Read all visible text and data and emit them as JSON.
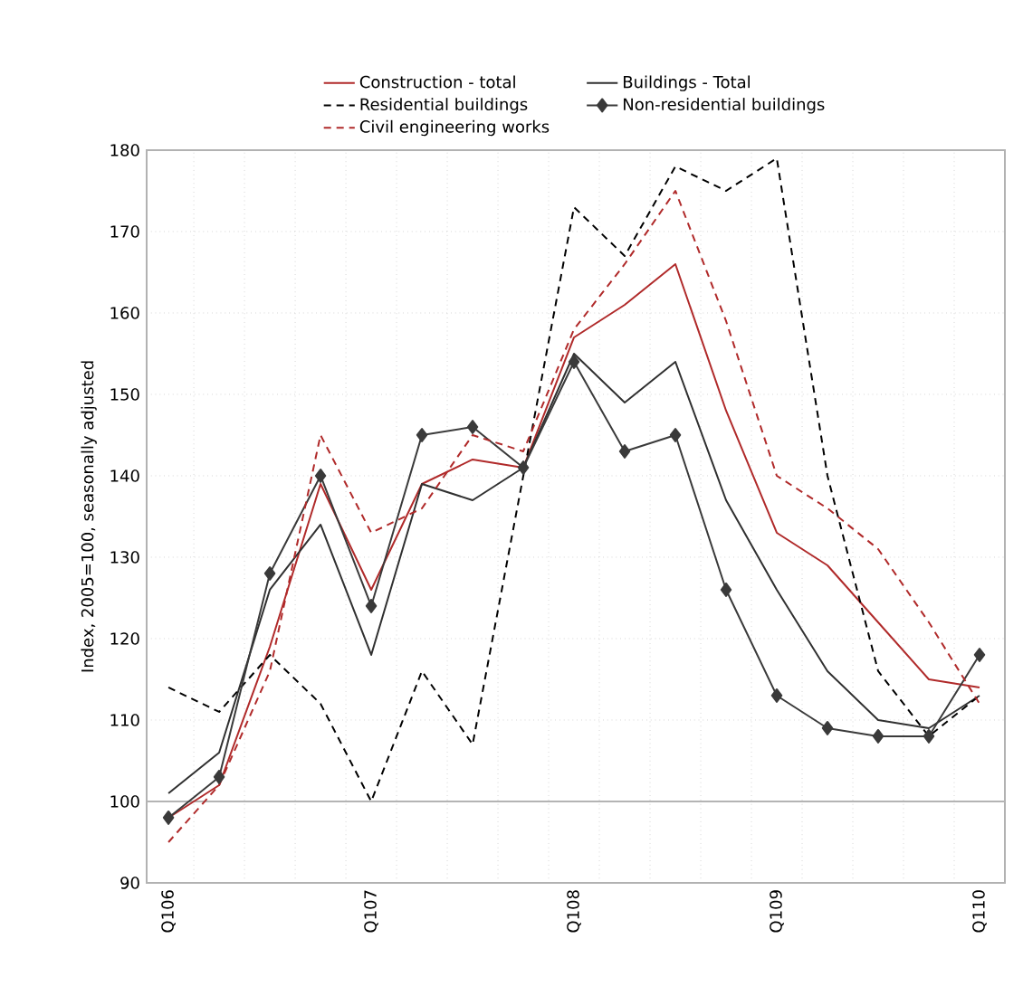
{
  "chart_data": {
    "type": "line",
    "ylabel": "Index, 2005=100, seasonally adjusted",
    "categories": [
      "Q106",
      null,
      null,
      null,
      "Q107",
      null,
      null,
      null,
      "Q108",
      null,
      null,
      null,
      "Q109",
      null,
      null,
      null,
      "Q110"
    ],
    "ylim": [
      90,
      180
    ],
    "yticks": [
      90,
      100,
      110,
      120,
      130,
      140,
      150,
      160,
      170,
      180
    ],
    "grid": true,
    "legend": "top",
    "ref_lines": [
      {
        "axis": "y",
        "value": 100,
        "color": "#b4b4b4"
      }
    ],
    "series": [
      {
        "name": "Construction - total",
        "color": "#b02a2a",
        "line_style": "solid",
        "marker": "none",
        "values": [
          98,
          102,
          119,
          139,
          126,
          139,
          142,
          141,
          157,
          161,
          166,
          148,
          133,
          129,
          122,
          115,
          114
        ]
      },
      {
        "name": "Buildings - Total",
        "color": "#303030",
        "line_style": "solid",
        "marker": "none",
        "values": [
          101,
          106,
          126,
          134,
          118,
          139,
          137,
          141,
          155,
          149,
          154,
          137,
          126,
          116,
          110,
          109,
          113
        ]
      },
      {
        "name": "Residential buildings",
        "color": "#000000",
        "line_style": "dashed",
        "marker": "none",
        "values": [
          114,
          111,
          118,
          112,
          100,
          116,
          107,
          140,
          173,
          167,
          178,
          175,
          179,
          140,
          116,
          108,
          113
        ]
      },
      {
        "name": "Non-residential buildings",
        "color": "#3a3a3a",
        "line_style": "solid",
        "marker": "diamond",
        "values": [
          98,
          103,
          128,
          140,
          124,
          145,
          146,
          141,
          154,
          143,
          145,
          126,
          113,
          109,
          108,
          108,
          118
        ]
      },
      {
        "name": "Civil engineering works",
        "color": "#b02a2a",
        "line_style": "dashed",
        "marker": "none",
        "values": [
          95,
          102,
          116,
          145,
          133,
          136,
          145,
          143,
          158,
          166,
          175,
          159,
          140,
          136,
          131,
          122,
          112
        ]
      }
    ]
  }
}
